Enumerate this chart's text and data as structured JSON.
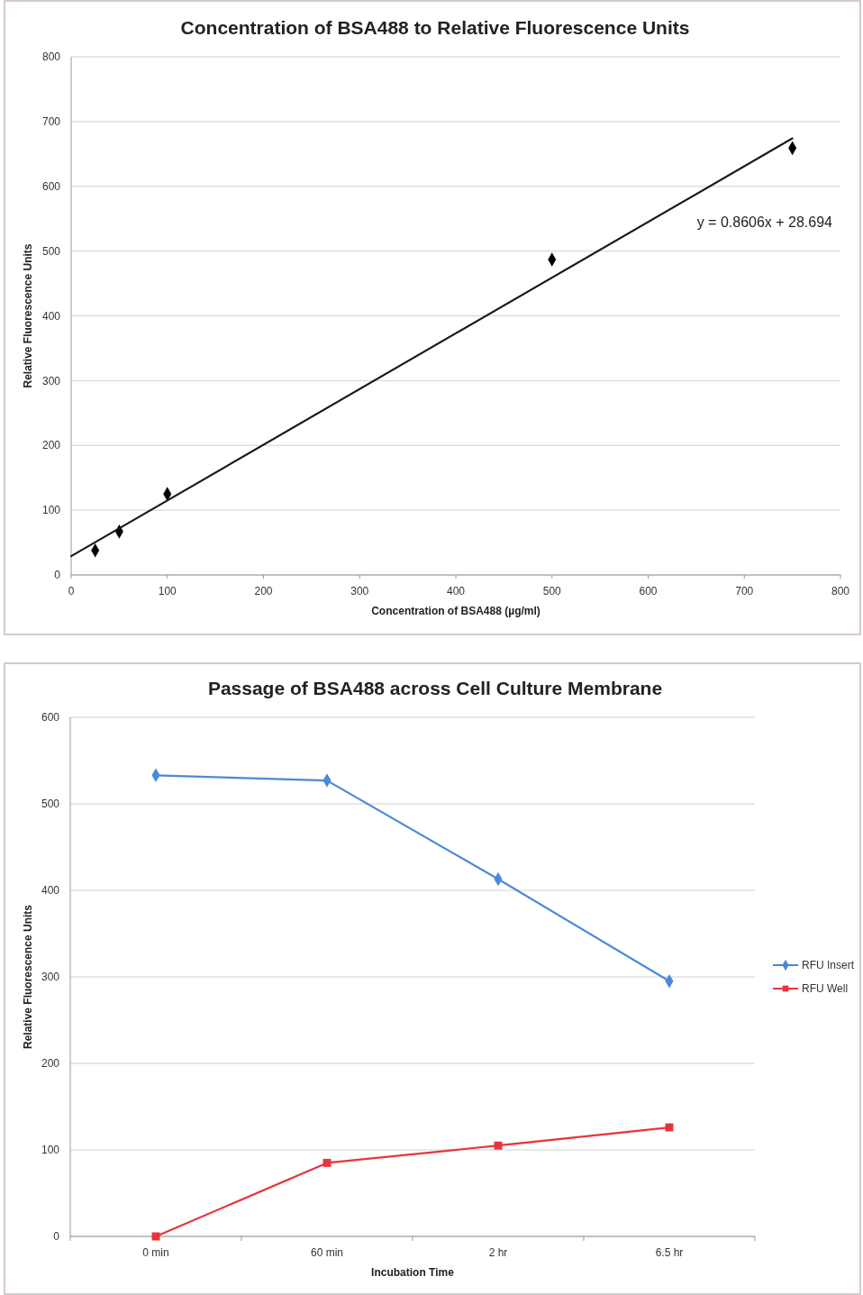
{
  "chart_data": [
    {
      "type": "scatter",
      "title": "Concentration of BSA488 to Relative Fluorescence Units",
      "xlabel": "Concentration of BSA488 (µg/ml)",
      "ylabel": "Relative Fluorescence Units",
      "xlim": [
        0,
        800
      ],
      "xticks": [
        0,
        100,
        200,
        300,
        400,
        500,
        600,
        700,
        800
      ],
      "ylim": [
        0,
        800
      ],
      "yticks": [
        0,
        100,
        200,
        300,
        400,
        500,
        600,
        700,
        800
      ],
      "grid": "y",
      "series": [
        {
          "color": "#000000",
          "marker": "diamond",
          "x": [
            25,
            50,
            100,
            500,
            750
          ],
          "values": [
            38,
            67,
            125,
            487,
            659
          ]
        },
        {
          "type": "line",
          "color": "#1a1a1a",
          "marker": "none",
          "line_style": "solid",
          "x": [
            0,
            750
          ],
          "values": [
            29,
            674
          ]
        }
      ],
      "annotations": [
        "y = 0.8606x + 28.694"
      ]
    },
    {
      "type": "line",
      "title": "Passage of BSA488 across Cell Culture Membrane",
      "xlabel": "Incubation Time",
      "ylabel": "Relative Fluorescence Units",
      "categories": [
        "0 min",
        "60 min",
        "2 hr",
        "6.5 hr"
      ],
      "ylim": [
        0,
        600
      ],
      "yticks": [
        0,
        100,
        200,
        300,
        400,
        500,
        600
      ],
      "grid": "y",
      "legend": "right",
      "series": [
        {
          "name": "RFU Insert",
          "color": "#4a8ad8",
          "marker": "diamond",
          "line_style": "solid",
          "values": [
            533,
            527,
            413,
            295
          ]
        },
        {
          "name": "RFU Well",
          "color": "#e8343c",
          "marker": "square",
          "line_style": "solid",
          "values": [
            0,
            85,
            105,
            126
          ]
        }
      ]
    }
  ]
}
